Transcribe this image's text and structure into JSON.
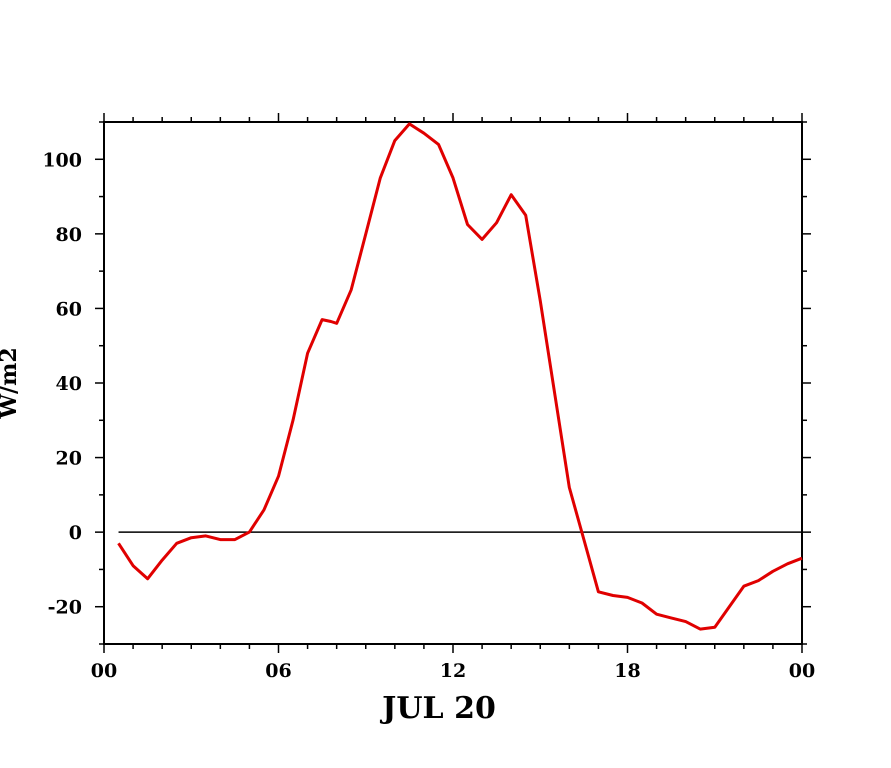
{
  "chart_data": {
    "type": "line",
    "xlabel": "JUL 20",
    "ylabel": "W/m2",
    "x_tick_labels": [
      "00",
      "06",
      "12",
      "18",
      "00"
    ],
    "x_tick_hours": [
      0,
      6,
      12,
      18,
      24
    ],
    "xlim": [
      0,
      24
    ],
    "ylim": [
      -30,
      110
    ],
    "y_ticks": [
      -20,
      0,
      20,
      40,
      60,
      80,
      100
    ],
    "y_tick_labels": [
      "-20",
      "0",
      "20",
      "40",
      "60",
      "80",
      "100"
    ],
    "reference_line": {
      "y": 0,
      "color": "#000000"
    },
    "grid": false,
    "series": [
      {
        "color": "#e00000",
        "x": [
          0.5,
          1.0,
          1.5,
          2.0,
          2.5,
          3.0,
          3.5,
          4.0,
          4.5,
          5.0,
          5.5,
          6.0,
          6.5,
          7.0,
          7.5,
          7.8,
          8.0,
          8.5,
          9.0,
          9.5,
          10.0,
          10.5,
          11.0,
          11.5,
          12.0,
          12.5,
          13.0,
          13.5,
          14.0,
          14.5,
          15.0,
          15.5,
          16.0,
          16.5,
          17.0,
          17.5,
          18.0,
          18.5,
          19.0,
          19.5,
          20.0,
          20.5,
          21.0,
          21.5,
          22.0,
          22.5,
          23.0,
          23.5,
          24.0
        ],
        "y": [
          -3,
          -9,
          -12.5,
          -7.5,
          -3,
          -1.5,
          -1,
          -2,
          -2,
          0,
          6,
          15,
          30,
          48,
          57,
          56.5,
          56,
          65,
          80,
          95,
          105,
          109.5,
          107,
          104,
          95,
          82.5,
          78.5,
          83,
          90.5,
          85,
          62,
          37,
          12,
          -2,
          -16,
          -17,
          -17.5,
          -19,
          -22,
          -23,
          -24,
          -26,
          -25.5,
          -20,
          -14.5,
          -13,
          -10.5,
          -8.5,
          -7
        ]
      }
    ]
  }
}
